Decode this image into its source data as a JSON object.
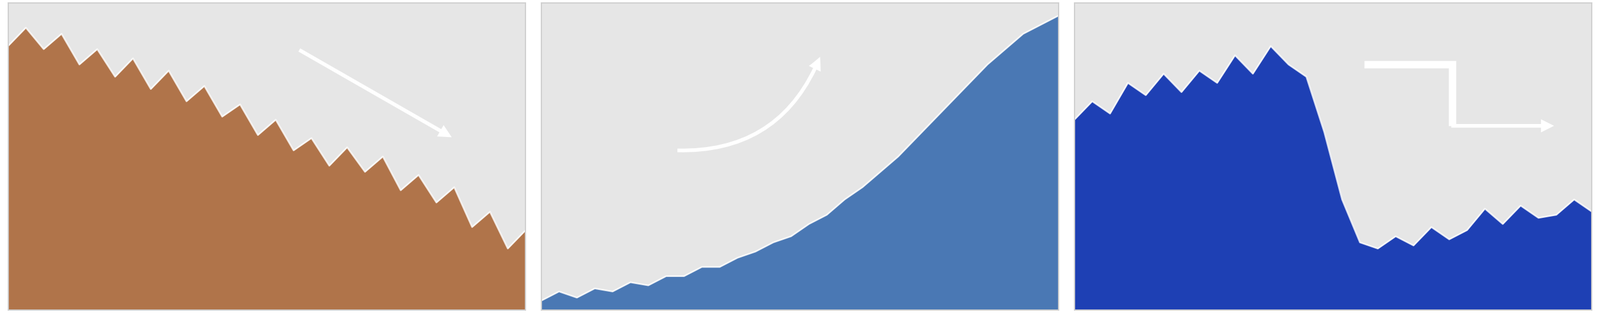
{
  "chart_data": [
    {
      "type": "area",
      "x": [
        0,
        1,
        2,
        3,
        4,
        5,
        6,
        7,
        8,
        9,
        10,
        11,
        12,
        13,
        14,
        15,
        16,
        17,
        18,
        19,
        20,
        21,
        22,
        23,
        24,
        25,
        26,
        27,
        28,
        29
      ],
      "values": [
        86,
        92,
        85,
        90,
        80,
        85,
        76,
        82,
        72,
        78,
        68,
        73,
        63,
        67,
        57,
        62,
        52,
        56,
        47,
        53,
        45,
        50,
        39,
        44,
        35,
        40,
        27,
        32,
        20,
        26
      ],
      "color": "#b0744a",
      "xlim": [
        0,
        29
      ],
      "ylim": [
        0,
        100
      ],
      "tick_labels": false
    },
    {
      "type": "area",
      "x": [
        0,
        1,
        2,
        3,
        4,
        5,
        6,
        7,
        8,
        9,
        10,
        11,
        12,
        13,
        14,
        15,
        16,
        17,
        18,
        19,
        20,
        21,
        22,
        23,
        24,
        25,
        26,
        27,
        28,
        29
      ],
      "values": [
        3,
        6,
        4,
        7,
        6,
        9,
        8,
        11,
        11,
        14,
        14,
        17,
        19,
        22,
        24,
        28,
        31,
        36,
        40,
        45,
        50,
        56,
        62,
        68,
        74,
        80,
        85,
        90,
        93,
        96
      ],
      "color": "#4a78b4",
      "xlim": [
        0,
        29
      ],
      "ylim": [
        0,
        100
      ],
      "tick_labels": false
    },
    {
      "type": "area",
      "x": [
        0,
        1,
        2,
        3,
        4,
        5,
        6,
        7,
        8,
        9,
        10,
        11,
        12,
        13,
        14,
        15,
        16,
        17,
        18,
        19,
        20,
        21,
        22,
        23,
        24,
        25,
        26,
        27,
        28,
        29
      ],
      "values": [
        62,
        68,
        64,
        74,
        70,
        77,
        71,
        78,
        74,
        83,
        77,
        86,
        80,
        76,
        58,
        36,
        22,
        20,
        24,
        21,
        27,
        23,
        26,
        33,
        28,
        34,
        30,
        31,
        36,
        32
      ],
      "color": "#1e40b4",
      "xlim": [
        0,
        29
      ],
      "ylim": [
        0,
        100
      ],
      "tick_labels": false
    }
  ]
}
